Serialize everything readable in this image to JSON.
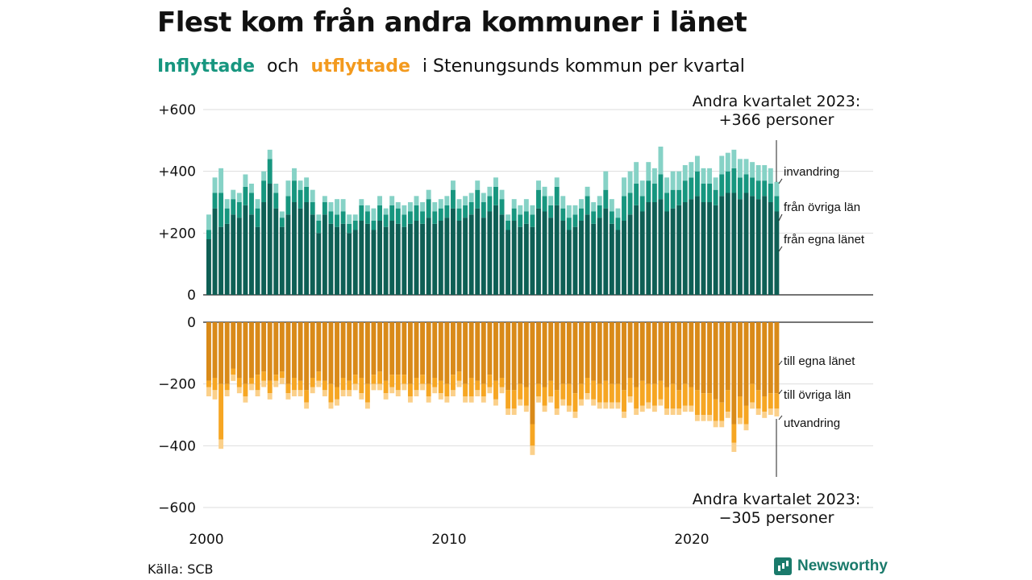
{
  "header": {
    "title": "Flest kom från andra kommuner i länet",
    "subtitle_in": "Inflyttade",
    "subtitle_och": "och",
    "subtitle_out": "utflyttade",
    "subtitle_rest": "i Stenungsunds  kommun  per  kvartal"
  },
  "footer": {
    "source": "Källa: SCB",
    "brand": "Newsworthy"
  },
  "colors": {
    "in_local": "#0e5f55",
    "in_other": "#17967f",
    "in_intl": "#86d2c6",
    "out_local": "#d98a19",
    "out_other": "#f6a623",
    "out_intl": "#fbd08a"
  },
  "chart_data": {
    "type": "bar",
    "stacked": true,
    "period": "quarterly, 2000 Q1 – 2023 Q2",
    "x_tick_labels": [
      "2000",
      "2010",
      "2020"
    ],
    "y_tick_labels_top": [
      "+600",
      "+400",
      "+200",
      "0"
    ],
    "y_tick_labels_bottom": [
      "0",
      "−200",
      "−400",
      "−600"
    ],
    "top_ylim": [
      0,
      600
    ],
    "bottom_ylim": [
      -600,
      0
    ],
    "grid": true,
    "annotation_top": [
      "Andra kvartalet 2023:",
      "+366 personer"
    ],
    "annotation_bottom": [
      "Andra kvartalet 2023:",
      "−305 personer"
    ],
    "series_labels_top": [
      "invandring",
      "från övriga län",
      "från egna länet"
    ],
    "series_labels_bottom": [
      "till egna länet",
      "till övriga län",
      "utvandring"
    ],
    "inflows": {
      "fran_egna_lanet": [
        180,
        280,
        220,
        230,
        260,
        250,
        290,
        260,
        220,
        300,
        360,
        280,
        220,
        260,
        300,
        280,
        300,
        260,
        200,
        260,
        230,
        220,
        230,
        200,
        210,
        240,
        230,
        210,
        240,
        220,
        240,
        230,
        220,
        230,
        240,
        230,
        250,
        230,
        240,
        250,
        280,
        240,
        250,
        260,
        280,
        250,
        270,
        290,
        260,
        210,
        240,
        220,
        230,
        220,
        280,
        270,
        250,
        290,
        240,
        210,
        220,
        240,
        260,
        230,
        250,
        280,
        230,
        210,
        240,
        260,
        290,
        270,
        300,
        300,
        310,
        270,
        280,
        290,
        300,
        310,
        320,
        300,
        300,
        290,
        320,
        330,
        330,
        310,
        330,
        320,
        310,
        320,
        300,
        270
      ],
      "fran_ovriga_lan": [
        30,
        50,
        110,
        50,
        50,
        50,
        60,
        70,
        60,
        70,
        80,
        50,
        30,
        60,
        70,
        60,
        50,
        40,
        40,
        40,
        40,
        40,
        40,
        30,
        30,
        50,
        40,
        30,
        50,
        40,
        50,
        50,
        40,
        40,
        50,
        40,
        60,
        40,
        40,
        40,
        60,
        40,
        40,
        40,
        60,
        50,
        50,
        60,
        50,
        30,
        40,
        40,
        40,
        40,
        60,
        50,
        40,
        60,
        40,
        40,
        40,
        40,
        60,
        40,
        40,
        60,
        40,
        40,
        80,
        70,
        70,
        50,
        70,
        60,
        80,
        60,
        60,
        50,
        70,
        70,
        80,
        60,
        60,
        50,
        70,
        70,
        80,
        70,
        60,
        60,
        60,
        50,
        60,
        50
      ],
      "invandring": [
        50,
        50,
        80,
        30,
        30,
        30,
        40,
        30,
        30,
        30,
        30,
        30,
        20,
        50,
        40,
        30,
        30,
        40,
        20,
        20,
        30,
        50,
        40,
        30,
        20,
        20,
        20,
        40,
        30,
        20,
        30,
        20,
        30,
        30,
        30,
        30,
        30,
        30,
        30,
        30,
        30,
        30,
        30,
        30,
        30,
        30,
        30,
        30,
        30,
        20,
        30,
        30,
        40,
        30,
        30,
        30,
        30,
        30,
        40,
        40,
        30,
        30,
        30,
        30,
        30,
        60,
        40,
        30,
        60,
        70,
        70,
        50,
        60,
        50,
        90,
        50,
        60,
        60,
        50,
        50,
        50,
        50,
        50,
        40,
        60,
        60,
        60,
        60,
        50,
        50,
        50,
        50,
        50,
        46
      ]
    },
    "outflows": {
      "till_egna_lanet": [
        -190,
        -180,
        -200,
        -200,
        -150,
        -180,
        -200,
        -180,
        -170,
        -160,
        -190,
        -170,
        -160,
        -200,
        -180,
        -190,
        -220,
        -180,
        -160,
        -190,
        -200,
        -210,
        -180,
        -190,
        -170,
        -180,
        -200,
        -170,
        -160,
        -190,
        -170,
        -170,
        -170,
        -200,
        -180,
        -170,
        -200,
        -180,
        -190,
        -200,
        -170,
        -160,
        -200,
        -180,
        -190,
        -200,
        -170,
        -190,
        -180,
        -220,
        -220,
        -200,
        -210,
        -330,
        -200,
        -210,
        -190,
        -220,
        -200,
        -200,
        -230,
        -200,
        -180,
        -190,
        -200,
        -190,
        -200,
        -200,
        -220,
        -180,
        -210,
        -190,
        -200,
        -200,
        -190,
        -210,
        -200,
        -220,
        -200,
        -210,
        -220,
        -230,
        -230,
        -250,
        -260,
        -220,
        -330,
        -240,
        -270,
        -200,
        -220,
        -240,
        -230,
        -230
      ],
      "till_ovriga_lan": [
        -20,
        -40,
        -180,
        -20,
        -20,
        -30,
        -40,
        -20,
        -50,
        -30,
        -40,
        -20,
        -20,
        -30,
        -40,
        -30,
        -40,
        -30,
        -30,
        -30,
        -60,
        -40,
        -40,
        -30,
        -30,
        -50,
        -60,
        -30,
        -40,
        -40,
        -40,
        -50,
        -30,
        -40,
        -40,
        -30,
        -40,
        -30,
        -40,
        -40,
        -50,
        -30,
        -40,
        -60,
        -30,
        -40,
        -40,
        -60,
        -30,
        -60,
        -60,
        -50,
        -60,
        -70,
        -40,
        -60,
        -50,
        -60,
        -50,
        -70,
        -60,
        -50,
        -50,
        -60,
        -60,
        -70,
        -60,
        -60,
        -70,
        -60,
        -70,
        -80,
        -60,
        -70,
        -60,
        -70,
        -80,
        -60,
        -70,
        -60,
        -80,
        -70,
        -70,
        -70,
        -60,
        -70,
        -60,
        -70,
        -60,
        -60,
        -60,
        -50,
        -50,
        -50
      ],
      "utvandring": [
        -30,
        -30,
        -30,
        -20,
        -20,
        -20,
        -20,
        -20,
        -20,
        -20,
        -20,
        -20,
        -20,
        -20,
        -20,
        -20,
        -20,
        -20,
        -20,
        -20,
        -20,
        -20,
        -20,
        -20,
        -20,
        -20,
        -20,
        -20,
        -20,
        -20,
        -20,
        -20,
        -20,
        -20,
        -20,
        -20,
        -20,
        -20,
        -20,
        -20,
        -20,
        -20,
        -20,
        -20,
        -20,
        -20,
        -20,
        -20,
        -20,
        -20,
        -20,
        -20,
        -20,
        -30,
        -20,
        -20,
        -20,
        -20,
        -20,
        -20,
        -20,
        -20,
        -20,
        -20,
        -20,
        -20,
        -20,
        -20,
        -20,
        -20,
        -20,
        -20,
        -20,
        -20,
        -20,
        -20,
        -20,
        -20,
        -20,
        -20,
        -20,
        -20,
        -20,
        -20,
        -20,
        -20,
        -30,
        -20,
        -20,
        -20,
        -20,
        -20,
        -20,
        -25
      ]
    }
  }
}
